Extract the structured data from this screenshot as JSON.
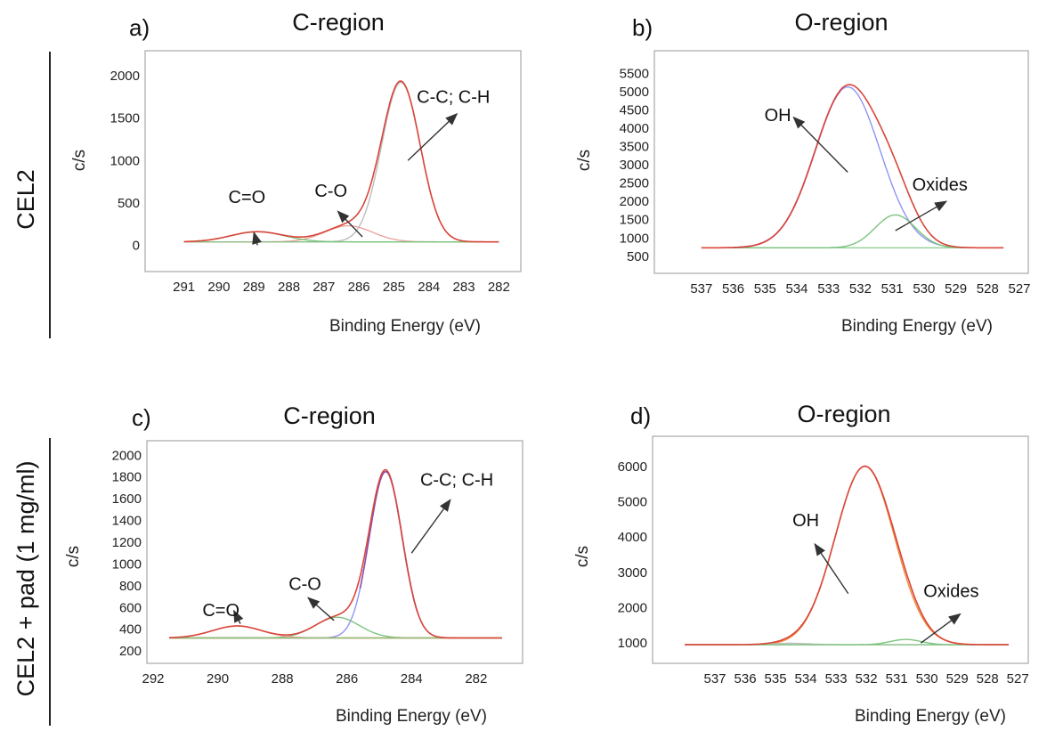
{
  "row_labels": [
    "CEL2",
    "CEL2 + pad (1 mg/ml)"
  ],
  "colors": {
    "envelope": "#d9453a",
    "component_blue": "#8f94f2",
    "component_purple": "#8a4fb0",
    "component_green": "#7cc47e",
    "component_pink": "#e8a6a0",
    "component_gray": "#bdbdbd",
    "baseline_orange": "#ef8a3c",
    "arrow": "#333333"
  },
  "chart_data": [
    {
      "type": "line",
      "panel": "a)",
      "title": "C-region",
      "xlabel": "Binding Energy (eV)",
      "ylabel": "c/s",
      "xlim": [
        291.5,
        281.5
      ],
      "ylim": [
        -100,
        2200
      ],
      "x_reversed": true,
      "x_ticks": [
        291,
        290,
        289,
        288,
        287,
        286,
        285,
        284,
        283,
        282
      ],
      "y_ticks": [
        0,
        500,
        1000,
        1500,
        2000
      ],
      "grid": false,
      "baseline": 40,
      "series": [
        {
          "role": "envelope",
          "color": "#d9453a",
          "components": [
            0,
            1,
            2
          ]
        },
        {
          "role": "component",
          "color": "#bdbdbd",
          "center": 284.8,
          "fwhm": 1.3,
          "height": 1880
        },
        {
          "role": "component",
          "color": "#e8a6a0",
          "center": 286.3,
          "fwhm": 1.6,
          "height": 190
        },
        {
          "role": "component",
          "color": "#7cc47e",
          "center": 288.9,
          "fwhm": 1.8,
          "height": 120
        }
      ],
      "annotations": [
        {
          "text": "C=O",
          "x": 289.2,
          "y": 500,
          "arrow_from": [
            288.9,
            0
          ],
          "arrow_to": [
            289.0,
            150
          ]
        },
        {
          "text": "C-O",
          "x": 286.8,
          "y": 570,
          "arrow_from": [
            285.9,
            100
          ],
          "arrow_to": [
            286.6,
            400
          ]
        },
        {
          "text": "C-C; C-H",
          "x": 283.3,
          "y": 1680,
          "arrow_from": [
            284.6,
            1000
          ],
          "arrow_to": [
            283.2,
            1550
          ]
        }
      ]
    },
    {
      "type": "line",
      "panel": "b)",
      "title": "O-region",
      "xlabel": "Binding Energy (eV)",
      "ylabel": "c/s",
      "xlim": [
        537.5,
        527.0
      ],
      "ylim": [
        300,
        5900
      ],
      "x_reversed": true,
      "x_ticks": [
        537,
        536,
        535,
        534,
        533,
        532,
        531,
        530,
        529,
        528,
        527
      ],
      "y_ticks": [
        500,
        1000,
        1500,
        2000,
        2500,
        3000,
        3500,
        4000,
        4500,
        5000,
        5500
      ],
      "grid": false,
      "baseline": 730,
      "series": [
        {
          "role": "envelope",
          "color": "#d9453a",
          "components": [
            0,
            1
          ]
        },
        {
          "role": "component",
          "color": "#8f94f2",
          "center": 532.4,
          "fwhm": 2.4,
          "height": 4400
        },
        {
          "role": "component",
          "color": "#7cc47e",
          "center": 530.9,
          "fwhm": 1.5,
          "height": 900
        },
        {
          "role": "overlay",
          "color": "#8a4fb0",
          "of_component": 0,
          "x_from": 536.0,
          "x_to": 532.6
        }
      ],
      "annotations": [
        {
          "text": "OH",
          "x": 534.6,
          "y": 4200,
          "arrow_from": [
            532.4,
            2800
          ],
          "arrow_to": [
            534.1,
            4300
          ]
        },
        {
          "text": "Oxides",
          "x": 529.5,
          "y": 2300,
          "arrow_from": [
            530.9,
            1200
          ],
          "arrow_to": [
            529.3,
            2000
          ]
        }
      ]
    },
    {
      "type": "line",
      "panel": "c)",
      "title": "C-region",
      "xlabel": "Binding Energy (eV)",
      "ylabel": "c/s",
      "xlim": [
        292.0,
        280.7
      ],
      "ylim": [
        160,
        2060
      ],
      "x_reversed": true,
      "x_ticks": [
        292,
        290,
        288,
        286,
        284,
        282
      ],
      "y_ticks": [
        200,
        400,
        600,
        800,
        1000,
        1200,
        1400,
        1600,
        1800,
        2000
      ],
      "grid": false,
      "baseline": 320,
      "series": [
        {
          "role": "envelope",
          "color": "#d9453a",
          "components": [
            0,
            1,
            2
          ]
        },
        {
          "role": "component",
          "color": "#8f94f2",
          "center": 284.8,
          "fwhm": 1.2,
          "height": 1530
        },
        {
          "role": "component",
          "color": "#7cc47e",
          "center": 286.3,
          "fwhm": 1.6,
          "height": 190
        },
        {
          "role": "component",
          "color": "#e8a6a0",
          "center": 289.4,
          "fwhm": 1.8,
          "height": 110
        },
        {
          "role": "overlay",
          "color": "#8a4fb0",
          "of_component": 0,
          "x_from": 285.6,
          "x_to": 283.8
        },
        {
          "role": "flat",
          "color": "#ef8a3c",
          "value": 320
        }
      ],
      "annotations": [
        {
          "text": "C=O",
          "x": 289.9,
          "y": 520,
          "arrow_from": [
            289.3,
            450
          ],
          "arrow_to": [
            289.5,
            570
          ]
        },
        {
          "text": "C-O",
          "x": 287.3,
          "y": 760,
          "arrow_from": [
            286.4,
            480
          ],
          "arrow_to": [
            287.2,
            690
          ]
        },
        {
          "text": "C-C; C-H",
          "x": 282.6,
          "y": 1720,
          "arrow_from": [
            284.0,
            1100
          ],
          "arrow_to": [
            282.8,
            1590
          ]
        }
      ]
    },
    {
      "type": "line",
      "panel": "d)",
      "title": "O-region",
      "xlabel": "Binding Energy (eV)",
      "ylabel": "c/s",
      "xlim": [
        538.5,
        526.8
      ],
      "ylim": [
        600,
        6600
      ],
      "x_reversed": true,
      "x_ticks": [
        537,
        536,
        535,
        534,
        533,
        532,
        531,
        530,
        529,
        528,
        527
      ],
      "y_ticks": [
        1000,
        2000,
        3000,
        4000,
        5000,
        6000
      ],
      "grid": false,
      "baseline": 950,
      "series": [
        {
          "role": "envelope",
          "color": "#d9453a",
          "components": [
            0,
            1,
            2
          ]
        },
        {
          "role": "component",
          "color": "#ef8a3c",
          "center": 532.05,
          "fwhm": 2.3,
          "height": 5050
        },
        {
          "role": "component",
          "color": "#7cc47e",
          "center": 530.7,
          "fwhm": 1.2,
          "height": 150
        },
        {
          "role": "component",
          "color": "#bdbdbd",
          "center": 534.5,
          "fwhm": 1.5,
          "height": 40
        }
      ],
      "annotations": [
        {
          "text": "OH",
          "x": 534.0,
          "y": 4300,
          "arrow_from": [
            532.6,
            2400
          ],
          "arrow_to": [
            533.7,
            3800
          ]
        },
        {
          "text": "Oxides",
          "x": 529.2,
          "y": 2300,
          "arrow_from": [
            530.2,
            1000
          ],
          "arrow_to": [
            528.9,
            1820
          ]
        }
      ]
    }
  ]
}
